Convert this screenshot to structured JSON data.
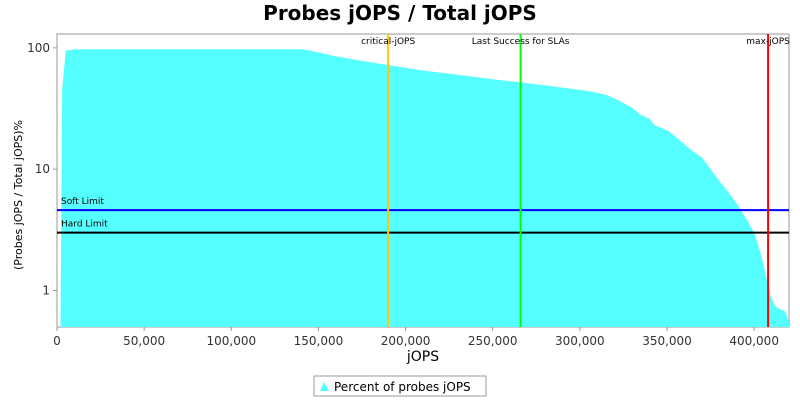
{
  "chart_data": {
    "type": "area",
    "title": "Probes jOPS / Total jOPS",
    "xlabel": "jOPS",
    "ylabel": "(Probes jOPS / Total jOPS)%",
    "x_scale": "linear",
    "y_scale": "log",
    "xlim": [
      0,
      420000
    ],
    "ylim": [
      0.5,
      130
    ],
    "x_ticks": [
      0,
      50000,
      100000,
      150000,
      200000,
      250000,
      300000,
      350000,
      400000
    ],
    "x_tick_labels": [
      "0",
      "50,000",
      "100,000",
      "150,000",
      "200,000",
      "250,000",
      "300,000",
      "350,000",
      "400,000"
    ],
    "y_ticks": [
      1,
      10,
      100
    ],
    "y_tick_labels": [
      "1",
      "10",
      "100"
    ],
    "series": [
      {
        "name": "Percent of probes jOPS",
        "color": "#55ffff",
        "x": [
          2000,
          3000,
          5000,
          10000,
          20000,
          50000,
          100000,
          140000,
          145000,
          160000,
          175000,
          190000,
          210000,
          230000,
          250000,
          265000,
          280000,
          295000,
          305000,
          315000,
          322000,
          330000,
          335000,
          340000,
          343000,
          350000,
          355000,
          360000,
          365000,
          370000,
          375000,
          380000,
          385000,
          390000,
          395000,
          400000,
          403000,
          406000,
          408000,
          410000,
          412000,
          415000,
          418000,
          420000
        ],
        "y": [
          0.5,
          45,
          95,
          97,
          97.5,
          97.5,
          97.5,
          97.5,
          95,
          85,
          78,
          72,
          65,
          60,
          55,
          52,
          49,
          46,
          44,
          41,
          37,
          32,
          28,
          26,
          23,
          21,
          18.5,
          16,
          14,
          12.5,
          10,
          8,
          6.5,
          5.2,
          4,
          3,
          2.2,
          1.5,
          1.1,
          0.85,
          0.74,
          0.7,
          0.67,
          0.55
        ]
      }
    ],
    "reference_lines": [
      {
        "label": "Soft Limit",
        "orientation": "horizontal",
        "value": 4.6,
        "color": "#0000ff"
      },
      {
        "label": "Hard Limit",
        "orientation": "horizontal",
        "value": 3.0,
        "color": "#000000"
      },
      {
        "label": "critical-jOPS",
        "orientation": "vertical",
        "value": 190000,
        "color": "#ffc800"
      },
      {
        "label": "Last Success for SLAs",
        "orientation": "vertical",
        "value": 266000,
        "color": "#00ff00"
      },
      {
        "label": "max-jOPS",
        "orientation": "vertical",
        "value": 408000,
        "color": "#ff0000"
      }
    ],
    "grid": false,
    "legend": "bottom"
  }
}
